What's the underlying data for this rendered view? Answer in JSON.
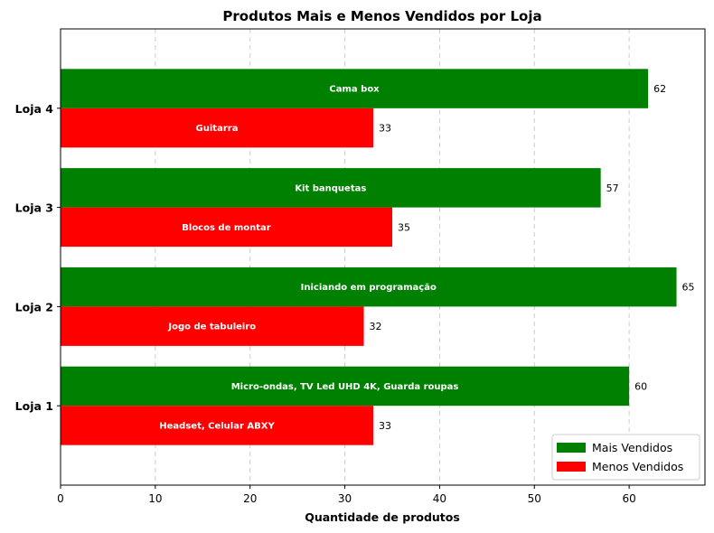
{
  "chart_data": {
    "type": "bar",
    "orientation": "horizontal",
    "title": "Produtos Mais e Menos Vendidos por Loja",
    "xlabel": "Quantidade de produtos",
    "ylabel": "",
    "xlim": [
      0,
      68
    ],
    "xticks": [
      0,
      10,
      20,
      30,
      40,
      50,
      60
    ],
    "grid": "x-dashed",
    "legend_position": "lower-right",
    "categories": [
      "Loja 1",
      "Loja 2",
      "Loja 3",
      "Loja 4"
    ],
    "series": [
      {
        "name": "Mais Vendidos",
        "color": "#008000",
        "values": [
          60,
          65,
          57,
          62
        ],
        "labels": [
          "Micro-ondas, TV Led UHD 4K, Guarda roupas",
          "Iniciando em programação",
          "Kit banquetas",
          "Cama box"
        ]
      },
      {
        "name": "Menos Vendidos",
        "color": "#ff0000",
        "values": [
          33,
          32,
          35,
          33
        ],
        "labels": [
          "Headset, Celular ABXY",
          "Jogo de tabuleiro",
          "Blocos de montar",
          "Guitarra"
        ]
      }
    ]
  }
}
